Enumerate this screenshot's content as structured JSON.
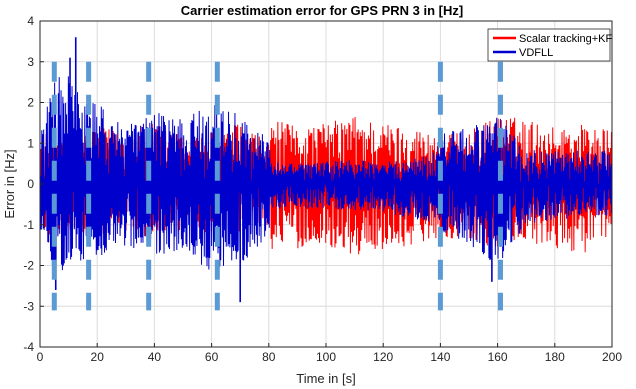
{
  "chart_data": {
    "type": "line",
    "title": "Carrier estimation error for GPS PRN 3 in [Hz]",
    "xlabel": "Time in [s]",
    "ylabel": "Error in [Hz]",
    "xlim": [
      0,
      200
    ],
    "ylim": [
      -4,
      4
    ],
    "xticks": [
      0,
      20,
      40,
      60,
      80,
      100,
      120,
      140,
      160,
      180,
      200
    ],
    "yticks": [
      -4,
      -3,
      -2,
      -1,
      0,
      1,
      2,
      3,
      4
    ],
    "grid": true,
    "legend_position": "top-right",
    "series": [
      {
        "name": "Scalar tracking+KF",
        "color": "#ff0000",
        "envelope": {
          "x": [
            0,
            5,
            10,
            20,
            30,
            40,
            50,
            60,
            70,
            80,
            81,
            90,
            100,
            110,
            120,
            130,
            140,
            150,
            160,
            170,
            180,
            190,
            200
          ],
          "upper": [
            1.2,
            1.3,
            1.2,
            1.4,
            1.3,
            1.5,
            1.2,
            1.3,
            1.5,
            1.0,
            1.6,
            1.4,
            1.5,
            1.7,
            1.5,
            1.4,
            1.2,
            1.3,
            1.7,
            1.6,
            1.4,
            1.5,
            1.3
          ],
          "lower": [
            -1.2,
            -1.3,
            -1.2,
            -1.3,
            -1.2,
            -1.4,
            -1.2,
            -1.3,
            -1.4,
            -1.0,
            -1.6,
            -1.6,
            -1.5,
            -1.8,
            -1.6,
            -1.5,
            -1.3,
            -1.4,
            -1.6,
            -1.5,
            -1.6,
            -1.7,
            -1.4
          ]
        }
      },
      {
        "name": "VDFLL",
        "color": "#0000cc",
        "envelope": {
          "x": [
            0,
            5,
            10,
            15,
            20,
            30,
            40,
            50,
            60,
            70,
            80,
            81,
            90,
            100,
            110,
            120,
            130,
            138,
            140,
            150,
            160,
            170,
            180,
            190,
            200
          ],
          "upper": [
            1.2,
            2.6,
            2.8,
            2.0,
            2.0,
            1.4,
            1.8,
            1.6,
            2.0,
            1.7,
            1.1,
            0.55,
            0.5,
            0.55,
            0.6,
            0.55,
            0.6,
            0.8,
            1.3,
            1.4,
            1.7,
            0.9,
            0.8,
            0.85,
            0.8
          ],
          "lower": [
            -1.4,
            -2.4,
            -2.0,
            -1.9,
            -1.9,
            -1.5,
            -1.8,
            -1.6,
            -2.2,
            -2.0,
            -1.3,
            -0.6,
            -0.6,
            -0.6,
            -0.65,
            -0.7,
            -0.9,
            -1.0,
            -1.3,
            -1.5,
            -2.0,
            -1.0,
            -0.9,
            -0.8,
            -0.8
          ]
        },
        "peaks": [
          {
            "x": 12.5,
            "y": 3.6
          },
          {
            "x": 10.5,
            "y": 3.1
          },
          {
            "x": 5.5,
            "y": -2.6
          },
          {
            "x": 70,
            "y": -2.9
          },
          {
            "x": 158,
            "y": -2.4
          }
        ]
      }
    ],
    "markers": {
      "name": "dashed-vertical-markers",
      "color": "#5b9bd5",
      "x": [
        5,
        17,
        38,
        62,
        140,
        161
      ]
    },
    "y_tick_labels": [
      "-4",
      "-3",
      "-2",
      "-1",
      "0",
      "1",
      "2",
      "3",
      "4"
    ],
    "x_tick_labels": [
      "0",
      "20",
      "40",
      "60",
      "80",
      "100",
      "120",
      "140",
      "160",
      "180",
      "200"
    ]
  }
}
